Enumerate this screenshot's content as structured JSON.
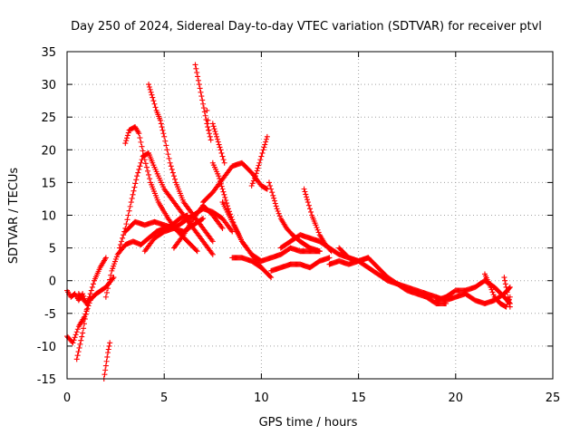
{
  "chart_data": {
    "type": "scatter",
    "title": "Day 250 of 2024, Sidereal Day-to-day VTEC variation (SDTVAR) for receiver ptvl",
    "xlabel": "GPS time / hours",
    "ylabel": "SDTVAR / TECUs",
    "xlim": [
      0,
      25
    ],
    "ylim": [
      -15,
      35
    ],
    "xticks": [
      0,
      5,
      10,
      15,
      20,
      25
    ],
    "yticks": [
      -15,
      -10,
      -5,
      0,
      5,
      10,
      15,
      20,
      25,
      30,
      35
    ],
    "grid": true,
    "legend": "none",
    "marker": "+",
    "color": "#ff0000",
    "series": [
      {
        "name": "s1",
        "x": [
          0.0,
          0.2,
          0.4,
          0.6,
          0.8,
          1.0,
          1.2
        ],
        "y": [
          -1.5,
          -2.5,
          -2.0,
          -3.0,
          -2.0,
          -3.5,
          -2.5
        ]
      },
      {
        "name": "s2",
        "x": [
          0.0,
          0.3,
          0.6,
          0.9,
          1.2
        ],
        "y": [
          -8.5,
          -9.5,
          -7.0,
          -5.5,
          -3.0
        ]
      },
      {
        "name": "s3",
        "x": [
          0.5,
          0.8,
          1.1,
          1.4,
          1.7,
          2.0
        ],
        "y": [
          -12.0,
          -8.0,
          -3.0,
          0.0,
          2.0,
          3.5
        ]
      },
      {
        "name": "s4",
        "x": [
          0.6,
          1.0,
          1.5,
          2.0,
          2.4
        ],
        "y": [
          -2.0,
          -3.5,
          -2.0,
          -1.0,
          0.5
        ]
      },
      {
        "name": "s5",
        "x": [
          1.9,
          2.0,
          2.1,
          2.2
        ],
        "y": [
          -15.0,
          -13.0,
          -11.0,
          -9.5
        ]
      },
      {
        "name": "s6",
        "x": [
          2.0,
          2.3,
          2.6,
          3.0,
          3.4,
          3.8,
          4.2,
          4.6,
          5.0,
          5.4,
          5.8,
          6.2
        ],
        "y": [
          -2.5,
          1.5,
          4.0,
          5.5,
          6.0,
          5.5,
          6.5,
          7.5,
          8.0,
          8.5,
          9.5,
          10.0
        ]
      },
      {
        "name": "s7",
        "x": [
          3.0,
          3.2,
          3.5,
          3.7,
          4.0,
          4.3,
          4.7,
          5.2,
          5.7,
          6.2,
          6.7
        ],
        "y": [
          21.0,
          23.0,
          23.5,
          22.5,
          18.5,
          15.0,
          12.0,
          9.5,
          7.5,
          6.0,
          4.5
        ]
      },
      {
        "name": "s8",
        "x": [
          2.7,
          3.0,
          3.3,
          3.6,
          3.9,
          4.2,
          4.4,
          4.7,
          5.0,
          5.5,
          6.0,
          6.5,
          7.0,
          7.5
        ],
        "y": [
          5.0,
          8.0,
          12.0,
          16.0,
          19.0,
          19.5,
          18.0,
          16.0,
          14.0,
          12.0,
          10.0,
          8.0,
          6.0,
          4.0
        ]
      },
      {
        "name": "s9",
        "x": [
          3.0,
          3.5,
          4.0,
          4.5,
          5.0,
          5.5,
          6.0,
          6.5,
          7.0
        ],
        "y": [
          7.5,
          9.0,
          8.5,
          9.0,
          8.5,
          8.0,
          7.5,
          8.5,
          9.5
        ]
      },
      {
        "name": "s10",
        "x": [
          4.0,
          4.5,
          5.0,
          5.5,
          6.0,
          6.5,
          7.0,
          7.5,
          8.0,
          8.5
        ],
        "y": [
          4.5,
          6.5,
          7.5,
          8.0,
          9.0,
          10.0,
          11.0,
          10.5,
          9.5,
          7.5
        ]
      },
      {
        "name": "s11",
        "x": [
          4.2,
          4.4,
          4.6,
          4.8,
          5.0,
          5.3,
          5.6,
          6.0,
          6.5,
          7.0,
          7.5
        ],
        "y": [
          30.0,
          28.0,
          26.0,
          24.5,
          22.0,
          18.0,
          15.0,
          12.0,
          10.0,
          8.0,
          6.0
        ]
      },
      {
        "name": "s12",
        "x": [
          5.5,
          6.0,
          6.5,
          7.0,
          7.5,
          8.0
        ],
        "y": [
          5.0,
          7.0,
          9.5,
          11.5,
          10.0,
          8.0
        ]
      },
      {
        "name": "s13",
        "x": [
          6.6,
          6.8,
          7.0,
          7.2,
          7.4
        ],
        "y": [
          33.0,
          30.0,
          27.0,
          24.0,
          21.5
        ]
      },
      {
        "name": "s14",
        "x": [
          7.2,
          7.3
        ],
        "y": [
          26.0,
          23.0
        ]
      },
      {
        "name": "s15",
        "x": [
          7.0,
          7.5,
          8.0,
          8.5,
          9.0,
          9.5,
          10.0,
          10.3
        ],
        "y": [
          12.0,
          13.5,
          15.5,
          17.5,
          18.0,
          16.5,
          14.5,
          14.0
        ]
      },
      {
        "name": "s16",
        "x": [
          7.5,
          7.8,
          8.0,
          8.3,
          8.6,
          9.0,
          9.5,
          10.0,
          10.5
        ],
        "y": [
          18.0,
          16.0,
          14.0,
          11.0,
          8.5,
          6.0,
          4.0,
          2.0,
          0.5
        ]
      },
      {
        "name": "s17",
        "x": [
          7.5,
          7.7,
          7.9,
          8.1
        ],
        "y": [
          24.0,
          22.0,
          20.0,
          18.0
        ]
      },
      {
        "name": "s18",
        "x": [
          8.0,
          8.5,
          9.0,
          9.5,
          10.0,
          10.5,
          11.0,
          11.5,
          12.0,
          12.5,
          13.0
        ],
        "y": [
          12.0,
          9.0,
          6.0,
          4.0,
          3.0,
          3.5,
          4.0,
          5.0,
          4.5,
          4.5,
          4.5
        ]
      },
      {
        "name": "s19",
        "x": [
          9.5,
          9.7,
          9.9,
          10.1,
          10.3
        ],
        "y": [
          14.5,
          16.0,
          18.0,
          20.0,
          22.0
        ]
      },
      {
        "name": "s20",
        "x": [
          8.5,
          9.0,
          9.5,
          10.0
        ],
        "y": [
          3.5,
          3.5,
          3.0,
          2.0
        ]
      },
      {
        "name": "s21",
        "x": [
          10.4,
          10.6,
          10.8,
          11.0,
          11.3,
          11.6,
          12.0,
          12.5,
          13.0
        ],
        "y": [
          15.0,
          13.0,
          11.0,
          9.5,
          8.0,
          7.0,
          6.0,
          5.0,
          4.5
        ]
      },
      {
        "name": "s22",
        "x": [
          10.5,
          11.0,
          11.5,
          12.0,
          12.5,
          13.0,
          13.5
        ],
        "y": [
          1.5,
          2.0,
          2.5,
          2.5,
          2.0,
          3.0,
          3.5
        ]
      },
      {
        "name": "s23",
        "x": [
          11.0,
          11.5,
          12.0,
          12.5,
          13.0,
          13.5,
          14.0,
          14.5,
          15.0,
          15.5
        ],
        "y": [
          5.0,
          6.0,
          7.0,
          6.5,
          6.0,
          5.0,
          4.0,
          3.5,
          3.0,
          3.5
        ]
      },
      {
        "name": "s24",
        "x": [
          12.2,
          12.4,
          12.6,
          12.8,
          13.0,
          13.3,
          13.6
        ],
        "y": [
          14.0,
          12.0,
          10.0,
          8.5,
          7.0,
          5.5,
          4.5
        ]
      },
      {
        "name": "s25",
        "x": [
          14.0,
          14.5,
          15.0,
          15.5,
          16.0,
          16.5,
          17.0,
          17.5,
          18.0,
          18.5,
          19.0,
          19.5
        ],
        "y": [
          5.0,
          3.5,
          3.0,
          3.5,
          2.0,
          0.5,
          -0.5,
          -1.5,
          -2.0,
          -2.5,
          -3.5,
          -3.5
        ]
      },
      {
        "name": "s26",
        "x": [
          13.5,
          14.0,
          14.5,
          15.0,
          15.5,
          16.0,
          16.5,
          17.0,
          17.5,
          18.0,
          18.5,
          19.0
        ],
        "y": [
          2.5,
          3.0,
          2.5,
          3.0,
          2.0,
          1.0,
          0.0,
          -0.5,
          -1.0,
          -1.5,
          -2.0,
          -2.5
        ]
      },
      {
        "name": "s27",
        "x": [
          19.0,
          19.5,
          20.0,
          20.5,
          21.0,
          21.5,
          22.0,
          22.5,
          22.8
        ],
        "y": [
          -3.0,
          -2.5,
          -1.5,
          -1.5,
          -1.0,
          0.0,
          -1.0,
          -2.5,
          -3.5
        ]
      },
      {
        "name": "s28",
        "x": [
          19.0,
          19.5,
          20.0,
          20.5,
          21.0,
          21.5,
          22.0,
          22.5,
          22.8
        ],
        "y": [
          -2.5,
          -3.0,
          -2.5,
          -2.0,
          -3.0,
          -3.5,
          -3.0,
          -2.0,
          -1.0
        ]
      },
      {
        "name": "s29",
        "x": [
          21.5,
          21.8,
          22.0,
          22.3,
          22.6,
          22.8
        ],
        "y": [
          1.0,
          -1.0,
          -2.5,
          -3.5,
          -4.0,
          -2.5
        ]
      },
      {
        "name": "s30",
        "x": [
          22.5,
          22.6,
          22.7,
          22.8
        ],
        "y": [
          0.5,
          -1.0,
          -2.5,
          -4.0
        ]
      }
    ]
  }
}
